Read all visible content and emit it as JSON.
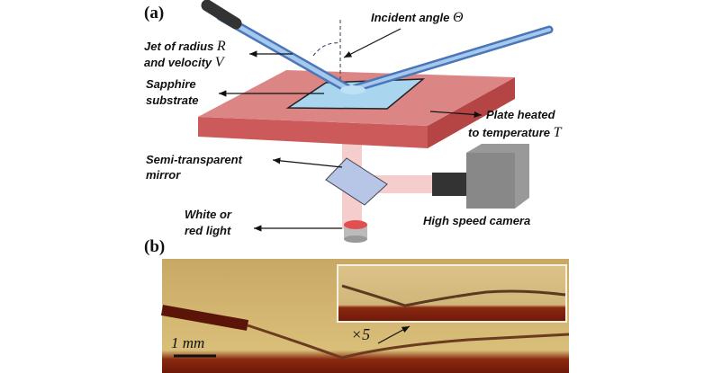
{
  "panel_a": {
    "label": "(a)",
    "incident_angle": {
      "text": "Incident angle",
      "symbol": "Θ"
    },
    "jet": {
      "line1": "Jet of radius",
      "symbol1": "R",
      "line2": "and velocity",
      "symbol2": "V"
    },
    "substrate": {
      "line1": "Sapphire",
      "line2": "substrate"
    },
    "plate": {
      "line1": "Plate heated",
      "line2": "to temperature",
      "symbol": "T"
    },
    "mirror": {
      "line1": "Semi-transparent",
      "line2": "mirror"
    },
    "light": {
      "line1": "White or",
      "line2": "red light"
    },
    "camera": "High speed camera"
  },
  "panel_b": {
    "label": "(b)",
    "scale_bar": "1 mm",
    "zoom": "×5"
  }
}
